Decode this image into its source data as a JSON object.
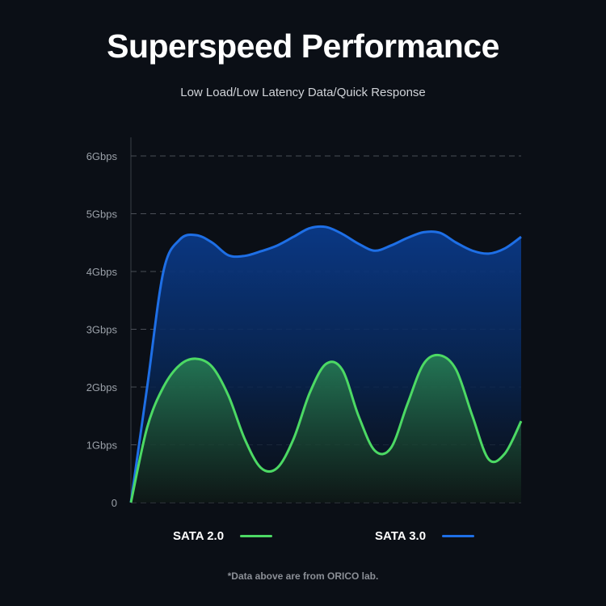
{
  "header": {
    "title": "Superspeed Performance",
    "subtitle": "Low Load/Low Latency Data/Quick Response"
  },
  "footnote": "*Data above are from ORICO lab.",
  "chart_data": {
    "type": "area",
    "title": "",
    "xlabel": "",
    "ylabel": "",
    "ylim": [
      0,
      6
    ],
    "yticks": [
      "0",
      "1Gbps",
      "2Gbps",
      "3Gbps",
      "4Gbps",
      "5Gbps",
      "6Gbps"
    ],
    "grid": "horizontal dashed",
    "legend": "bottom",
    "series": [
      {
        "name": "SATA 2.0",
        "color": "#4cd964",
        "values": [
          0,
          1.3,
          2.0,
          2.38,
          2.49,
          2.35,
          1.85,
          1.1,
          0.6,
          0.6,
          1.1,
          1.9,
          2.4,
          2.3,
          1.5,
          0.9,
          0.95,
          1.7,
          2.4,
          2.55,
          2.3,
          1.5,
          0.75,
          0.85,
          1.41
        ]
      },
      {
        "name": "SATA 3.0",
        "color": "#1e6fe6",
        "values": [
          0,
          2.0,
          4.0,
          4.55,
          4.63,
          4.5,
          4.28,
          4.27,
          4.35,
          4.45,
          4.6,
          4.75,
          4.77,
          4.65,
          4.48,
          4.36,
          4.45,
          4.58,
          4.68,
          4.67,
          4.5,
          4.36,
          4.31,
          4.4,
          4.6
        ]
      }
    ]
  }
}
